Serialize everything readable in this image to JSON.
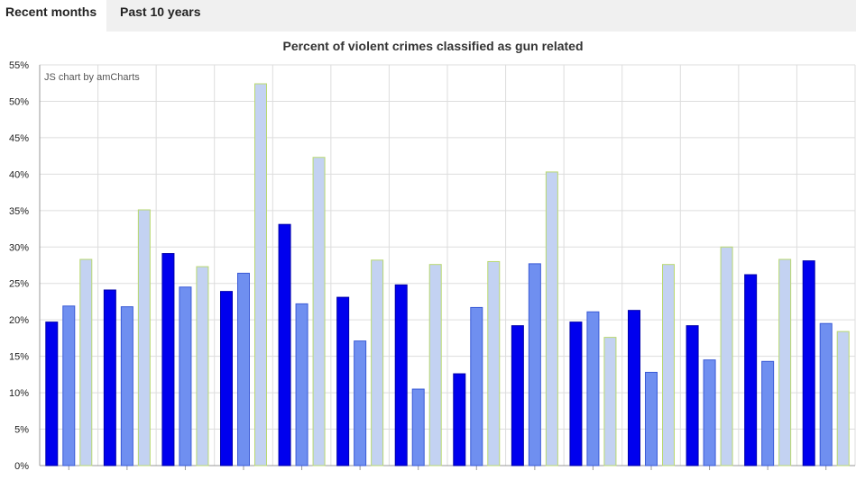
{
  "tabs": [
    {
      "label": "Recent months",
      "active": true
    },
    {
      "label": "Past 10 years",
      "active": false
    }
  ],
  "credit": "JS chart by amCharts",
  "colors": {
    "series": [
      "#0000ee",
      "#6f8ff0",
      "#c3d2f2"
    ],
    "series_stroke": [
      "#0000aa",
      "#3b5bd6",
      "#b9d870"
    ],
    "grid": "#dddddd",
    "axis": "#999999"
  },
  "chart_data": {
    "type": "bar",
    "title": "Percent of violent crimes classified as gun related",
    "ylim": [
      0,
      55
    ],
    "yticks": [
      "0%",
      "5%",
      "10%",
      "15%",
      "20%",
      "25%",
      "30%",
      "35%",
      "40%",
      "45%",
      "50%",
      "55%"
    ],
    "grid": true,
    "series": [
      {
        "values": [
          19.7,
          24.1,
          29.1,
          23.9,
          33.1,
          23.1,
          24.8,
          12.6,
          19.2,
          19.7,
          21.3,
          19.2,
          26.2,
          28.1
        ]
      },
      {
        "values": [
          21.9,
          21.8,
          24.5,
          26.4,
          22.2,
          17.1,
          10.5,
          21.7,
          27.7,
          21.1,
          12.8,
          14.5,
          14.3,
          19.5
        ]
      },
      {
        "values": [
          28.3,
          35.1,
          27.3,
          52.4,
          42.3,
          28.2,
          27.6,
          28.0,
          40.3,
          17.6,
          27.6,
          30.0,
          28.3,
          18.4
        ]
      }
    ]
  }
}
